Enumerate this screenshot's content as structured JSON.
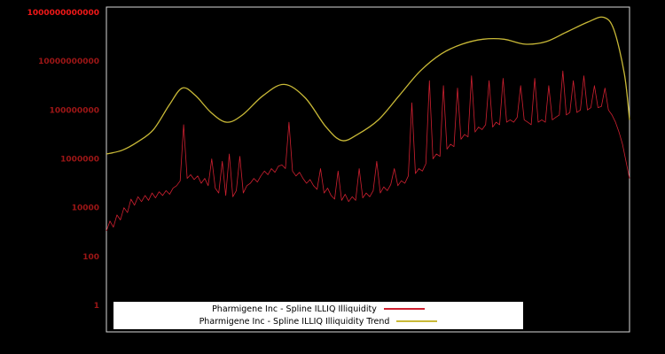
{
  "page": {
    "background": "#000000",
    "plot_border_color": "#d9d9d9"
  },
  "chart_data": {
    "type": "line",
    "title": "",
    "xlabel": "",
    "ylabel": "",
    "yscale": "log",
    "grid": false,
    "legend_position": "bottom-center",
    "axis_range_log10": [
      -1.1,
      12.2
    ],
    "yticks": [
      {
        "label": "1",
        "log10": 0,
        "color": "#9e1616"
      },
      {
        "label": "100",
        "log10": 2,
        "color": "#9e1616"
      },
      {
        "label": "10000",
        "log10": 4,
        "color": "#9e1616"
      },
      {
        "label": "1000000",
        "log10": 6,
        "color": "#9e1616"
      },
      {
        "label": "100000000",
        "log10": 8,
        "color": "#9e1616"
      },
      {
        "label": "10000000000",
        "log10": 10,
        "color": "#9e1616"
      },
      {
        "label": "1000000000000",
        "log10": 12,
        "color": "#f01818"
      }
    ],
    "series": [
      {
        "name": "Pharmigene Inc - Spline ILLIQ Illiquidity",
        "color": "#cf2030",
        "width": 0.8,
        "smooth": false,
        "x_evenly_spaced": true,
        "log10_values": [
          3.05,
          3.45,
          3.2,
          3.7,
          3.5,
          4.0,
          3.8,
          4.35,
          4.1,
          4.45,
          4.25,
          4.5,
          4.3,
          4.6,
          4.4,
          4.65,
          4.5,
          4.7,
          4.55,
          4.8,
          4.9,
          5.1,
          7.4,
          5.2,
          5.35,
          5.15,
          5.3,
          5.0,
          5.2,
          4.9,
          6.0,
          4.8,
          4.6,
          5.9,
          4.5,
          6.2,
          4.45,
          4.7,
          6.1,
          4.6,
          4.9,
          5.0,
          5.2,
          5.05,
          5.3,
          5.5,
          5.35,
          5.6,
          5.45,
          5.7,
          5.75,
          5.6,
          7.5,
          5.5,
          5.3,
          5.45,
          5.2,
          5.0,
          5.15,
          4.9,
          4.75,
          5.6,
          4.6,
          4.8,
          4.5,
          4.35,
          5.5,
          4.3,
          4.55,
          4.25,
          4.45,
          4.3,
          5.6,
          4.4,
          4.6,
          4.45,
          4.7,
          5.9,
          4.6,
          4.85,
          4.7,
          4.95,
          5.6,
          4.9,
          5.1,
          5.0,
          5.3,
          8.3,
          5.4,
          5.6,
          5.5,
          5.8,
          9.2,
          6.0,
          6.2,
          6.1,
          9.0,
          6.4,
          6.6,
          6.5,
          8.9,
          6.8,
          7.0,
          6.9,
          9.4,
          7.1,
          7.3,
          7.2,
          7.4,
          9.2,
          7.3,
          7.5,
          7.4,
          9.3,
          7.5,
          7.6,
          7.5,
          7.7,
          9.0,
          7.6,
          7.5,
          7.4,
          9.3,
          7.5,
          7.6,
          7.5,
          9.0,
          7.6,
          7.7,
          7.8,
          9.6,
          7.8,
          7.9,
          9.2,
          7.9,
          8.0,
          9.4,
          8.0,
          8.1,
          9.0,
          8.1,
          8.15,
          8.9,
          8.0,
          7.8,
          7.5,
          7.1,
          6.6,
          5.9,
          5.2
        ]
      },
      {
        "name": "Pharmigene Inc - Spline ILLIQ Illiquidity Trend",
        "color": "#c9b937",
        "width": 1.3,
        "smooth": true,
        "x": [
          0,
          0.03,
          0.06,
          0.09,
          0.12,
          0.145,
          0.17,
          0.2,
          0.23,
          0.26,
          0.3,
          0.34,
          0.38,
          0.42,
          0.45,
          0.48,
          0.52,
          0.56,
          0.6,
          0.64,
          0.68,
          0.72,
          0.76,
          0.8,
          0.84,
          0.88,
          0.92,
          0.95,
          0.97,
          0.99,
          1.0
        ],
        "log10_values": [
          6.2,
          6.35,
          6.7,
          7.2,
          8.2,
          8.9,
          8.6,
          7.9,
          7.5,
          7.8,
          8.6,
          9.05,
          8.5,
          7.3,
          6.75,
          7.0,
          7.6,
          8.6,
          9.6,
          10.3,
          10.7,
          10.9,
          10.9,
          10.7,
          10.8,
          11.2,
          11.6,
          11.8,
          11.3,
          9.5,
          7.6
        ]
      }
    ]
  }
}
